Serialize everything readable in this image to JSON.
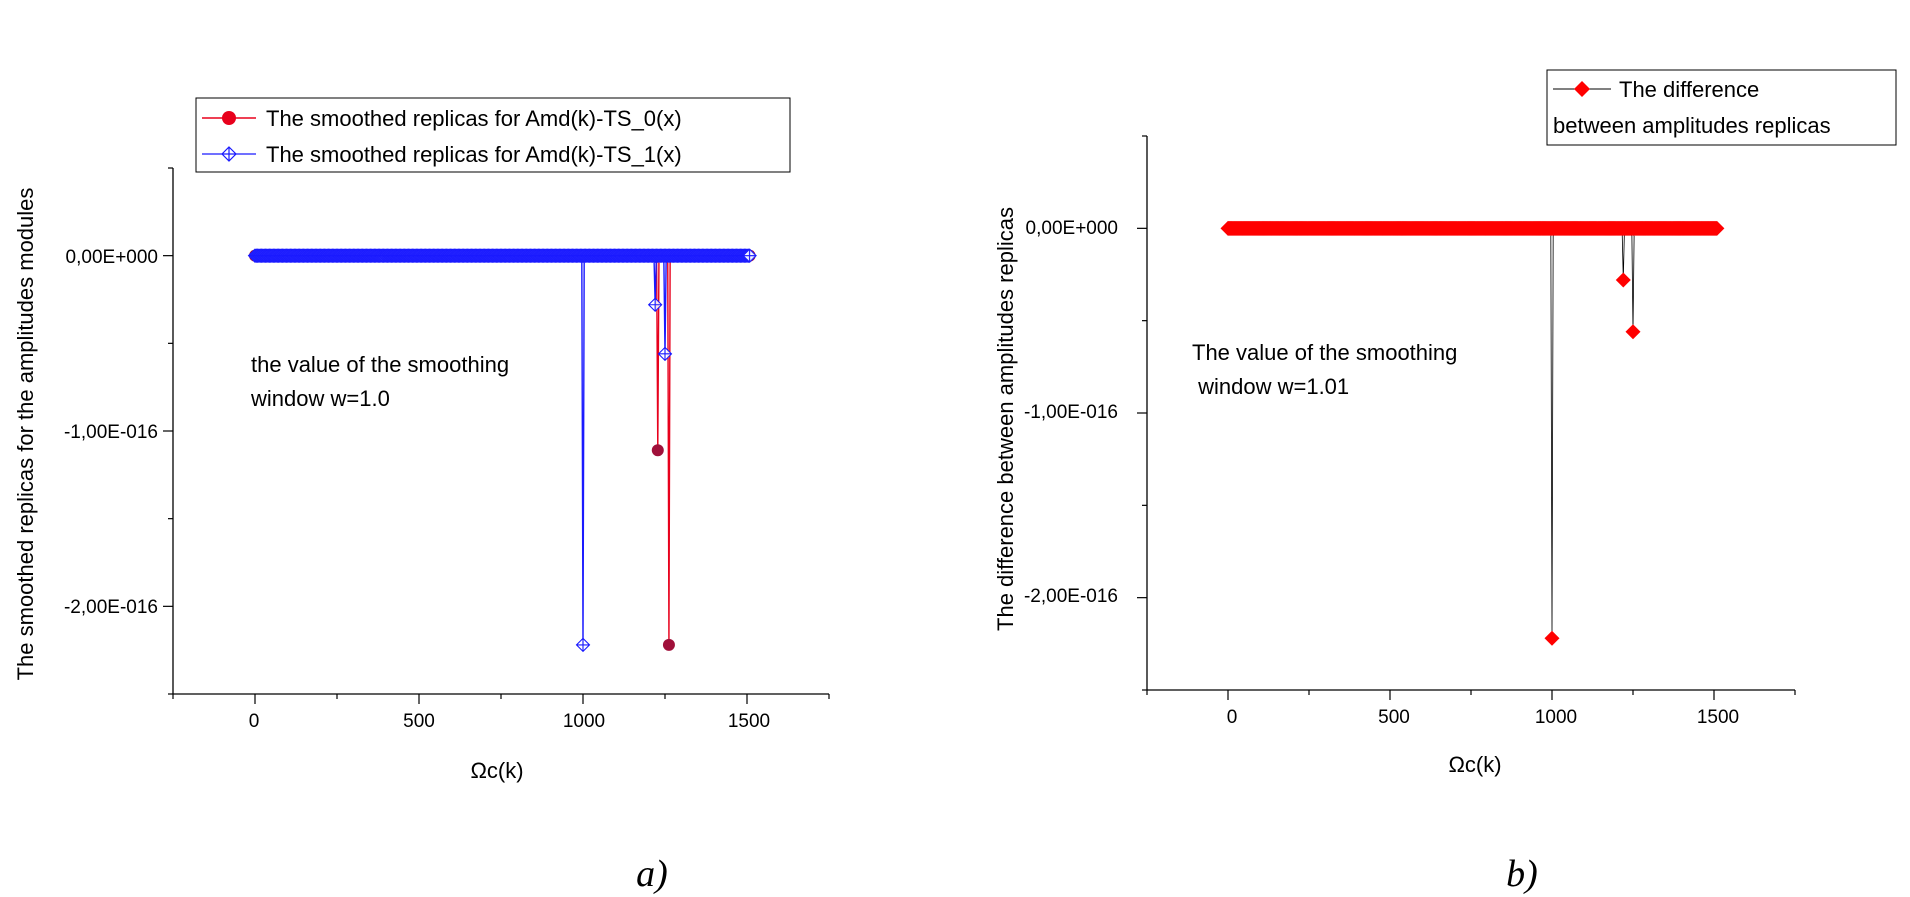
{
  "chart_data": [
    {
      "type": "line",
      "panel_caption": "a)",
      "xlabel": "Ωc(k)",
      "ylabel": "The smoothed replicas for the amplitudes modules",
      "xlim": [
        -250,
        1750
      ],
      "ylim": [
        -2.5e-16,
        5e-17
      ],
      "x_tick_values": [
        0,
        500,
        1000,
        1500
      ],
      "x_tick_labels": [
        "0",
        "500",
        "1000",
        "1500"
      ],
      "y_tick_values": [
        0,
        -1e-16,
        -2e-16
      ],
      "y_tick_labels": [
        "0,00E+000",
        "-1,00E-016",
        "-2,00E-016"
      ],
      "annotation": [
        "the value of the smoothing",
        "window w=1.0"
      ],
      "legend_position": "top",
      "series": [
        {
          "name": "The smoothed replicas for Amd(k)-TS_0(x)",
          "color": "#e8001c",
          "marker": "filled-circle",
          "x_range": [
            0,
            1510
          ],
          "baseline": 0,
          "spikes": [
            {
              "x": 1228,
              "y": -1.11e-16
            },
            {
              "x": 1262,
              "y": -2.22e-16
            }
          ]
        },
        {
          "name": "The smoothed replicas for Amd(k)-TS_1(x)",
          "color": "#1a1aff",
          "marker": "open-diamond-cross",
          "x_range": [
            0,
            1510
          ],
          "baseline": 0,
          "spikes": [
            {
              "x": 1000,
              "y": -2.22e-16
            },
            {
              "x": 1220,
              "y": -2.8e-17
            },
            {
              "x": 1250,
              "y": -5.6e-17
            }
          ]
        }
      ]
    },
    {
      "type": "line",
      "panel_caption": "b)",
      "xlabel": "Ωc(k)",
      "ylabel": "The difference between amplitudes replicas",
      "xlim": [
        -250,
        1750
      ],
      "ylim": [
        -2.5e-16,
        5e-17
      ],
      "x_tick_values": [
        0,
        500,
        1000,
        1500
      ],
      "x_tick_labels": [
        "0",
        "500",
        "1000",
        "1500"
      ],
      "y_tick_values": [
        0,
        -1e-16,
        -2e-16
      ],
      "y_tick_labels": [
        "0,00E+000",
        "-1,00E-016",
        "-2,00E-016"
      ],
      "annotation": [
        "The value of the smoothing",
        " window w=1.01"
      ],
      "legend_position": "top-right",
      "series": [
        {
          "name_lines": [
            "The difference",
            "between amplitudes replicas"
          ],
          "color": "#ff0000",
          "marker": "filled-diamond",
          "x_range": [
            0,
            1510
          ],
          "baseline": 0,
          "spikes": [
            {
              "x": 1000,
              "y": -2.22e-16
            },
            {
              "x": 1220,
              "y": -2.8e-17
            },
            {
              "x": 1250,
              "y": -5.6e-17
            }
          ]
        }
      ]
    }
  ]
}
